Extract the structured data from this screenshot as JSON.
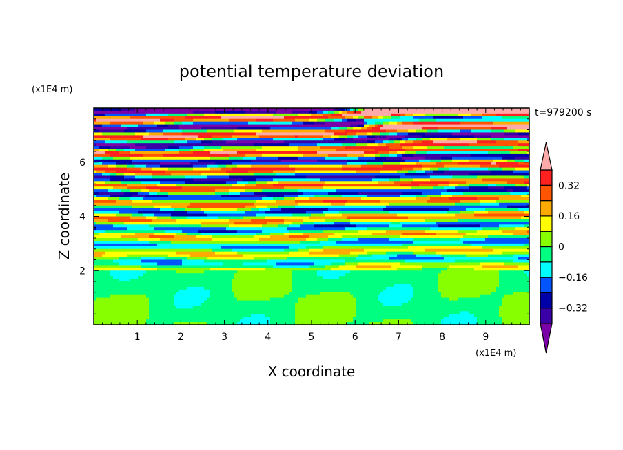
{
  "chart_data": {
    "type": "heatmap",
    "title": "potential temperature deviation",
    "xlabel": "X coordinate",
    "ylabel": "Z coordinate",
    "x_unit": "(x1E4 m)",
    "y_unit": "(x1E4 m)",
    "time_label": "t=979200 s",
    "xlim": [
      0,
      10
    ],
    "ylim": [
      0,
      8
    ],
    "xticks": [
      "1",
      "2",
      "3",
      "4",
      "5",
      "6",
      "7",
      "8",
      "9"
    ],
    "yticks": [
      "2",
      "4",
      "6"
    ],
    "levels": [
      -0.4,
      -0.32,
      -0.24,
      -0.16,
      -0.08,
      0,
      0.08,
      0.16,
      0.24,
      0.32,
      0.4
    ],
    "colors": [
      "#7a00a8",
      "#3a00a8",
      "#0000a8",
      "#0055ff",
      "#00ffff",
      "#00ff80",
      "#88ff00",
      "#ffff00",
      "#ffaa00",
      "#ff5500",
      "#ff2020",
      "#ffaaaa"
    ],
    "colorbar_labels": [
      {
        "value": 0.32,
        "text": "0.32"
      },
      {
        "value": 0.16,
        "text": "0.16"
      },
      {
        "value": 0,
        "text": "0"
      },
      {
        "value": -0.16,
        "text": "−0.16"
      },
      {
        "value": -0.32,
        "text": "−0.32"
      }
    ],
    "field_description_note": "",
    "layer_boundary_z": 2.0
  }
}
